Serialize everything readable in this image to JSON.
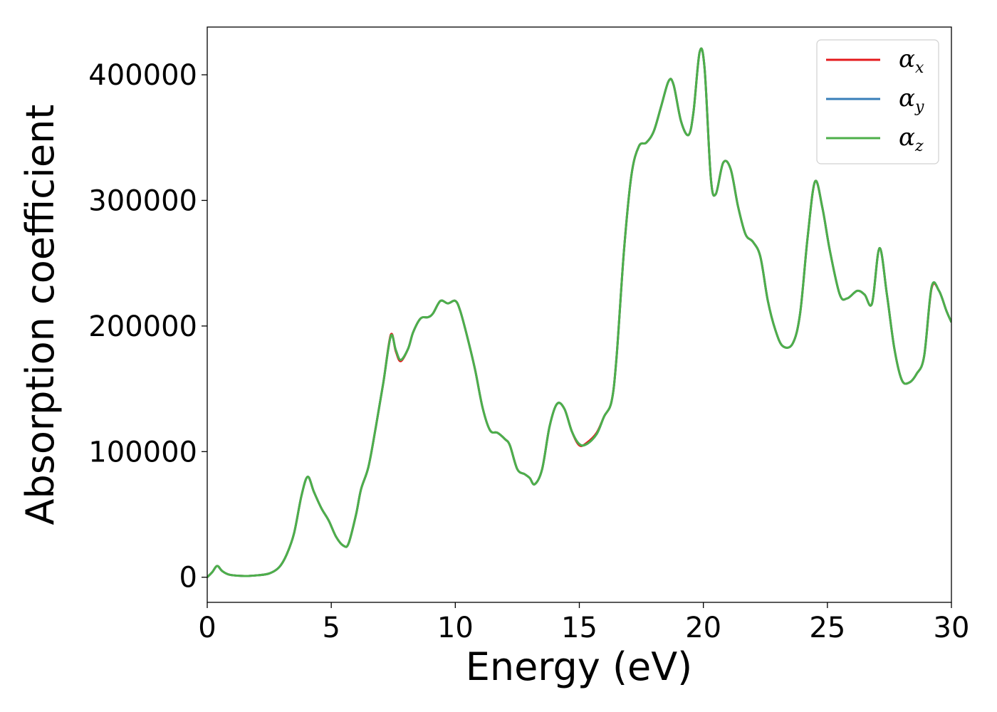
{
  "chart_data": {
    "type": "line",
    "xlabel": "Energy (eV)",
    "ylabel": "Absorption coefficient",
    "xlim": [
      0,
      30
    ],
    "ylim": [
      -20000,
      438000
    ],
    "x_ticks": [
      0,
      5,
      10,
      15,
      20,
      25,
      30
    ],
    "y_ticks": [
      0,
      100000,
      200000,
      300000,
      400000
    ],
    "grid": false,
    "legend_position": "top-right",
    "series": [
      {
        "name": "α",
        "subscript": "x",
        "color": "#e41a1c",
        "points": [
          [
            0,
            0
          ],
          [
            0.2,
            4000
          ],
          [
            0.4,
            9000
          ],
          [
            0.6,
            5000
          ],
          [
            0.9,
            2000
          ],
          [
            1.5,
            1000
          ],
          [
            2.0,
            1500
          ],
          [
            2.5,
            3000
          ],
          [
            2.9,
            8000
          ],
          [
            3.2,
            18000
          ],
          [
            3.5,
            35000
          ],
          [
            3.8,
            65000
          ],
          [
            4.05,
            80000
          ],
          [
            4.3,
            68000
          ],
          [
            4.6,
            55000
          ],
          [
            4.9,
            45000
          ],
          [
            5.2,
            32000
          ],
          [
            5.5,
            25000
          ],
          [
            5.7,
            27000
          ],
          [
            6.0,
            50000
          ],
          [
            6.2,
            70000
          ],
          [
            6.5,
            88000
          ],
          [
            6.8,
            120000
          ],
          [
            7.1,
            155000
          ],
          [
            7.4,
            193000
          ],
          [
            7.6,
            180000
          ],
          [
            7.8,
            172000
          ],
          [
            8.1,
            182000
          ],
          [
            8.3,
            195000
          ],
          [
            8.6,
            206000
          ],
          [
            8.9,
            207000
          ],
          [
            9.1,
            210000
          ],
          [
            9.4,
            220000
          ],
          [
            9.7,
            218000
          ],
          [
            10.0,
            220000
          ],
          [
            10.2,
            212000
          ],
          [
            10.5,
            190000
          ],
          [
            10.8,
            165000
          ],
          [
            11.1,
            135000
          ],
          [
            11.4,
            117000
          ],
          [
            11.7,
            115000
          ],
          [
            12.0,
            110000
          ],
          [
            12.2,
            105000
          ],
          [
            12.5,
            86000
          ],
          [
            12.8,
            82000
          ],
          [
            13.0,
            79000
          ],
          [
            13.2,
            74000
          ],
          [
            13.5,
            86000
          ],
          [
            13.8,
            120000
          ],
          [
            14.1,
            138000
          ],
          [
            14.4,
            134000
          ],
          [
            14.7,
            116000
          ],
          [
            15.0,
            105000
          ],
          [
            15.3,
            107000
          ],
          [
            15.7,
            115000
          ],
          [
            16.0,
            128000
          ],
          [
            16.3,
            140000
          ],
          [
            16.5,
            175000
          ],
          [
            16.8,
            260000
          ],
          [
            17.1,
            320000
          ],
          [
            17.4,
            343000
          ],
          [
            17.7,
            346000
          ],
          [
            18.0,
            355000
          ],
          [
            18.3,
            375000
          ],
          [
            18.6,
            395000
          ],
          [
            18.8,
            392000
          ],
          [
            19.1,
            363000
          ],
          [
            19.4,
            352000
          ],
          [
            19.6,
            370000
          ],
          [
            19.85,
            418000
          ],
          [
            20.05,
            405000
          ],
          [
            20.3,
            318000
          ],
          [
            20.5,
            305000
          ],
          [
            20.8,
            330000
          ],
          [
            21.1,
            325000
          ],
          [
            21.4,
            295000
          ],
          [
            21.7,
            273000
          ],
          [
            22.0,
            267000
          ],
          [
            22.3,
            255000
          ],
          [
            22.6,
            220000
          ],
          [
            22.9,
            197000
          ],
          [
            23.2,
            184000
          ],
          [
            23.6,
            186000
          ],
          [
            23.9,
            210000
          ],
          [
            24.2,
            270000
          ],
          [
            24.5,
            315000
          ],
          [
            24.8,
            294000
          ],
          [
            25.1,
            260000
          ],
          [
            25.5,
            225000
          ],
          [
            25.8,
            222000
          ],
          [
            26.2,
            228000
          ],
          [
            26.5,
            225000
          ],
          [
            26.8,
            218000
          ],
          [
            27.1,
            262000
          ],
          [
            27.4,
            225000
          ],
          [
            27.7,
            182000
          ],
          [
            28.0,
            157000
          ],
          [
            28.3,
            155000
          ],
          [
            28.6,
            162000
          ],
          [
            28.9,
            176000
          ],
          [
            29.2,
            230000
          ],
          [
            29.5,
            228000
          ],
          [
            29.8,
            212000
          ],
          [
            30.0,
            203000
          ]
        ]
      },
      {
        "name": "α",
        "subscript": "y",
        "color": "#377eb8",
        "points": [
          [
            0,
            0
          ],
          [
            0.2,
            4000
          ],
          [
            0.4,
            9000
          ],
          [
            0.6,
            5000
          ],
          [
            0.9,
            2000
          ],
          [
            1.5,
            1000
          ],
          [
            2.0,
            1500
          ],
          [
            2.5,
            3000
          ],
          [
            2.9,
            8000
          ],
          [
            3.2,
            18000
          ],
          [
            3.5,
            35000
          ],
          [
            3.8,
            65000
          ],
          [
            4.05,
            80000
          ],
          [
            4.3,
            68000
          ],
          [
            4.6,
            55000
          ],
          [
            4.9,
            45000
          ],
          [
            5.2,
            32000
          ],
          [
            5.5,
            25000
          ],
          [
            5.7,
            27000
          ],
          [
            6.0,
            50000
          ],
          [
            6.2,
            70000
          ],
          [
            6.5,
            88000
          ],
          [
            6.8,
            120000
          ],
          [
            7.1,
            155000
          ],
          [
            7.4,
            192000
          ],
          [
            7.6,
            181000
          ],
          [
            7.8,
            173000
          ],
          [
            8.1,
            182000
          ],
          [
            8.3,
            195000
          ],
          [
            8.6,
            206000
          ],
          [
            8.9,
            207000
          ],
          [
            9.1,
            210000
          ],
          [
            9.4,
            220000
          ],
          [
            9.7,
            218000
          ],
          [
            10.0,
            220000
          ],
          [
            10.2,
            212000
          ],
          [
            10.5,
            190000
          ],
          [
            10.8,
            165000
          ],
          [
            11.1,
            135000
          ],
          [
            11.4,
            117000
          ],
          [
            11.7,
            115000
          ],
          [
            12.0,
            110000
          ],
          [
            12.2,
            105000
          ],
          [
            12.5,
            86000
          ],
          [
            12.8,
            82000
          ],
          [
            13.0,
            79000
          ],
          [
            13.2,
            74000
          ],
          [
            13.5,
            86000
          ],
          [
            13.8,
            120000
          ],
          [
            14.1,
            138000
          ],
          [
            14.4,
            134000
          ],
          [
            14.7,
            116000
          ],
          [
            15.0,
            106000
          ],
          [
            15.3,
            106000
          ],
          [
            15.7,
            114000
          ],
          [
            16.0,
            128000
          ],
          [
            16.3,
            140000
          ],
          [
            16.5,
            175000
          ],
          [
            16.8,
            260000
          ],
          [
            17.1,
            320000
          ],
          [
            17.4,
            343000
          ],
          [
            17.7,
            346000
          ],
          [
            18.0,
            355000
          ],
          [
            18.3,
            375000
          ],
          [
            18.6,
            395000
          ],
          [
            18.8,
            392000
          ],
          [
            19.1,
            363000
          ],
          [
            19.4,
            352000
          ],
          [
            19.6,
            370000
          ],
          [
            19.85,
            418000
          ],
          [
            20.05,
            405000
          ],
          [
            20.3,
            318000
          ],
          [
            20.5,
            305000
          ],
          [
            20.8,
            330000
          ],
          [
            21.1,
            325000
          ],
          [
            21.4,
            295000
          ],
          [
            21.7,
            273000
          ],
          [
            22.0,
            267000
          ],
          [
            22.3,
            255000
          ],
          [
            22.6,
            220000
          ],
          [
            22.9,
            197000
          ],
          [
            23.2,
            184000
          ],
          [
            23.6,
            186000
          ],
          [
            23.9,
            210000
          ],
          [
            24.2,
            270000
          ],
          [
            24.5,
            315000
          ],
          [
            24.8,
            294000
          ],
          [
            25.1,
            260000
          ],
          [
            25.5,
            225000
          ],
          [
            25.8,
            222000
          ],
          [
            26.2,
            228000
          ],
          [
            26.5,
            225000
          ],
          [
            26.8,
            218000
          ],
          [
            27.1,
            262000
          ],
          [
            27.4,
            225000
          ],
          [
            27.7,
            182000
          ],
          [
            28.0,
            157000
          ],
          [
            28.3,
            155000
          ],
          [
            28.6,
            162000
          ],
          [
            28.9,
            176000
          ],
          [
            29.2,
            231000
          ],
          [
            29.5,
            228000
          ],
          [
            29.8,
            212000
          ],
          [
            30.0,
            203000
          ]
        ]
      },
      {
        "name": "α",
        "subscript": "z",
        "color": "#4daf4a",
        "points": [
          [
            0,
            0
          ],
          [
            0.2,
            4000
          ],
          [
            0.4,
            9000
          ],
          [
            0.6,
            5000
          ],
          [
            0.9,
            2000
          ],
          [
            1.5,
            1000
          ],
          [
            2.0,
            1500
          ],
          [
            2.5,
            3000
          ],
          [
            2.9,
            8000
          ],
          [
            3.2,
            18000
          ],
          [
            3.5,
            35000
          ],
          [
            3.8,
            65000
          ],
          [
            4.05,
            80000
          ],
          [
            4.3,
            68000
          ],
          [
            4.6,
            55000
          ],
          [
            4.9,
            45000
          ],
          [
            5.2,
            32000
          ],
          [
            5.5,
            25000
          ],
          [
            5.7,
            27000
          ],
          [
            6.0,
            50000
          ],
          [
            6.2,
            70000
          ],
          [
            6.5,
            88000
          ],
          [
            6.8,
            120000
          ],
          [
            7.1,
            155000
          ],
          [
            7.4,
            192000
          ],
          [
            7.6,
            181000
          ],
          [
            7.8,
            173000
          ],
          [
            8.1,
            182000
          ],
          [
            8.3,
            195000
          ],
          [
            8.6,
            206000
          ],
          [
            8.9,
            207000
          ],
          [
            9.1,
            210000
          ],
          [
            9.4,
            220000
          ],
          [
            9.7,
            218000
          ],
          [
            10.0,
            220000
          ],
          [
            10.2,
            212000
          ],
          [
            10.5,
            190000
          ],
          [
            10.8,
            165000
          ],
          [
            11.1,
            135000
          ],
          [
            11.4,
            117000
          ],
          [
            11.7,
            115000
          ],
          [
            12.0,
            110000
          ],
          [
            12.2,
            105000
          ],
          [
            12.5,
            86000
          ],
          [
            12.8,
            82000
          ],
          [
            13.0,
            79000
          ],
          [
            13.2,
            74000
          ],
          [
            13.5,
            86000
          ],
          [
            13.8,
            120000
          ],
          [
            14.1,
            138000
          ],
          [
            14.4,
            134000
          ],
          [
            14.7,
            116000
          ],
          [
            15.0,
            106000
          ],
          [
            15.3,
            106000
          ],
          [
            15.7,
            114000
          ],
          [
            16.0,
            128000
          ],
          [
            16.3,
            140000
          ],
          [
            16.5,
            175000
          ],
          [
            16.8,
            260000
          ],
          [
            17.1,
            320000
          ],
          [
            17.4,
            343000
          ],
          [
            17.7,
            346000
          ],
          [
            18.0,
            355000
          ],
          [
            18.3,
            375000
          ],
          [
            18.6,
            395000
          ],
          [
            18.8,
            392000
          ],
          [
            19.1,
            363000
          ],
          [
            19.4,
            352000
          ],
          [
            19.6,
            370000
          ],
          [
            19.85,
            418000
          ],
          [
            20.05,
            405000
          ],
          [
            20.3,
            318000
          ],
          [
            20.5,
            305000
          ],
          [
            20.8,
            330000
          ],
          [
            21.1,
            325000
          ],
          [
            21.4,
            295000
          ],
          [
            21.7,
            273000
          ],
          [
            22.0,
            267000
          ],
          [
            22.3,
            255000
          ],
          [
            22.6,
            220000
          ],
          [
            22.9,
            197000
          ],
          [
            23.2,
            184000
          ],
          [
            23.6,
            186000
          ],
          [
            23.9,
            210000
          ],
          [
            24.2,
            270000
          ],
          [
            24.5,
            315000
          ],
          [
            24.8,
            294000
          ],
          [
            25.1,
            260000
          ],
          [
            25.5,
            225000
          ],
          [
            25.8,
            222000
          ],
          [
            26.2,
            228000
          ],
          [
            26.5,
            225000
          ],
          [
            26.8,
            218000
          ],
          [
            27.1,
            262000
          ],
          [
            27.4,
            225000
          ],
          [
            27.7,
            182000
          ],
          [
            28.0,
            157000
          ],
          [
            28.3,
            155000
          ],
          [
            28.6,
            162000
          ],
          [
            28.9,
            176000
          ],
          [
            29.2,
            231000
          ],
          [
            29.5,
            228000
          ],
          [
            29.8,
            212000
          ],
          [
            30.0,
            203000
          ]
        ]
      }
    ]
  }
}
